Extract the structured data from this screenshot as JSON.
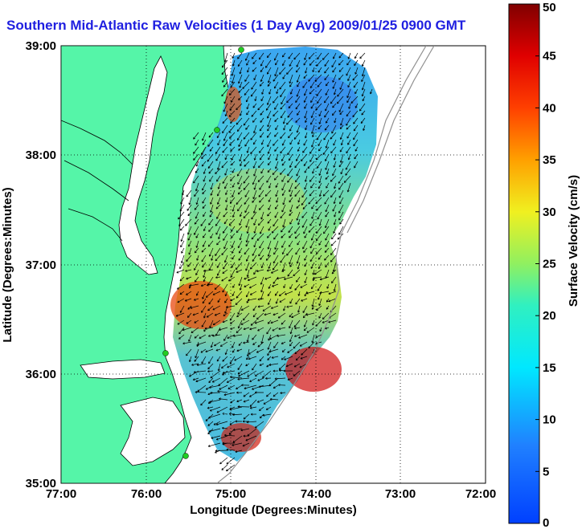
{
  "title": "Southern Mid-Atlantic Raw Velocities (1 Day Avg) 2009/01/25 0900 GMT",
  "map": {
    "xlabel": "Longitude (Degrees:Minutes)",
    "ylabel": "Latitude (Degrees:Minutes)",
    "lon_range": [
      -77,
      -72
    ],
    "lat_range": [
      35,
      39
    ],
    "x_ticks": [
      "77:00",
      "76:00",
      "75:00",
      "74:00",
      "73:00",
      "72:00"
    ],
    "y_ticks": [
      "35:00",
      "36:00",
      "37:00",
      "38:00",
      "39:00"
    ],
    "land_color": "#55f5a8",
    "grid": "dotted"
  },
  "colorbar": {
    "label": "Surface Velocity (cm/s)",
    "min": 0,
    "max": 50,
    "ticks": [
      "0",
      "5",
      "10",
      "15",
      "20",
      "25",
      "30",
      "35",
      "40",
      "45",
      "50"
    ]
  }
}
